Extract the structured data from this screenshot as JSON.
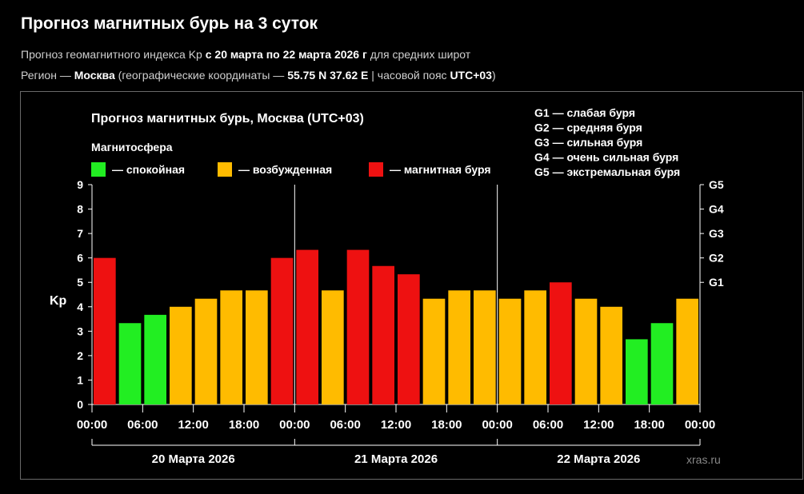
{
  "page": {
    "title": "Прогноз магнитных бурь на 3 суток",
    "subtitle": {
      "prefix": "Прогноз геомагнитного индекса Kp ",
      "dates": "с 20 марта по 22 марта 2026 г",
      "suffix": " для средних широт"
    },
    "region": {
      "prefix": "Регион — ",
      "city": "Москва",
      "middle": " (географические координаты — ",
      "coords": "55.75 N 37.62 E",
      "tz_prefix": " | часовой пояс ",
      "tz": "UTC+03",
      "suffix": ")"
    }
  },
  "chart_data": {
    "type": "bar",
    "title": "Прогноз магнитных бурь, Москва (UTC+03)",
    "ylabel": "Kp",
    "xlabel": "",
    "ylim": [
      0,
      9
    ],
    "yticks": [
      "0",
      "1",
      "2",
      "3",
      "4",
      "5",
      "6",
      "7",
      "8",
      "9"
    ],
    "g_scale": [
      {
        "level": 5,
        "label": "G1"
      },
      {
        "level": 6,
        "label": "G2"
      },
      {
        "level": 7,
        "label": "G3"
      },
      {
        "level": 8,
        "label": "G4"
      },
      {
        "level": 9,
        "label": "G5"
      }
    ],
    "legend_left": {
      "title": "Магнитосфера",
      "items": [
        {
          "label": "— спокойная",
          "color": "#22ee22"
        },
        {
          "label": "— возбужденная",
          "color": "#ffbb00"
        },
        {
          "label": "— магнитная буря",
          "color": "#ee1111"
        }
      ]
    },
    "legend_right": [
      "G1 — слабая буря",
      "G2 — средняя буря",
      "G3 — сильная буря",
      "G4 — очень сильная буря",
      "G5 — экстремальная буря"
    ],
    "x_tick_labels": [
      "00:00",
      "06:00",
      "12:00",
      "18:00",
      "00:00",
      "06:00",
      "12:00",
      "18:00",
      "00:00",
      "06:00",
      "12:00",
      "18:00",
      "00:00"
    ],
    "days": [
      "20 Марта 2026",
      "21 Марта 2026",
      "22 Марта 2026"
    ],
    "values": [
      6.0,
      3.33,
      3.67,
      4.0,
      4.33,
      4.67,
      4.67,
      6.0,
      6.33,
      4.67,
      6.33,
      5.67,
      5.33,
      4.33,
      4.67,
      4.67,
      4.33,
      4.67,
      5.0,
      4.33,
      4.0,
      2.67,
      3.33,
      4.33
    ],
    "bar_colors": [
      "#ee1111",
      "#22ee22",
      "#22ee22",
      "#ffbb00",
      "#ffbb00",
      "#ffbb00",
      "#ffbb00",
      "#ee1111",
      "#ee1111",
      "#ffbb00",
      "#ee1111",
      "#ee1111",
      "#ee1111",
      "#ffbb00",
      "#ffbb00",
      "#ffbb00",
      "#ffbb00",
      "#ffbb00",
      "#ee1111",
      "#ffbb00",
      "#ffbb00",
      "#22ee22",
      "#22ee22",
      "#ffbb00"
    ],
    "watermark": "xras.ru"
  }
}
